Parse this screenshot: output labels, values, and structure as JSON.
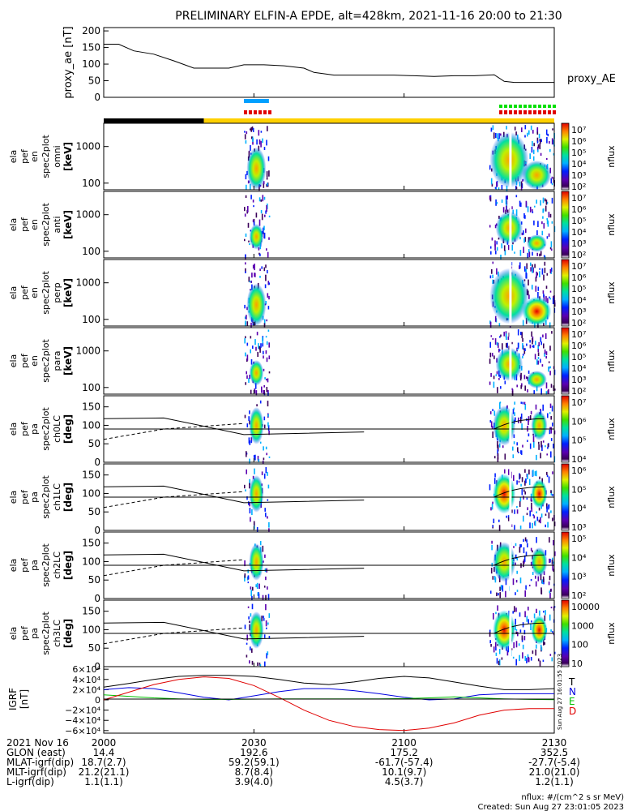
{
  "title": "PRELIMINARY ELFIN-A EPDE, alt=428km, 2021-11-16 20:00 to 21:30",
  "colors": {
    "red": "#e00000",
    "blue": "#0000e0",
    "green": "#00c000",
    "black": "#000000",
    "yellow": "#ffd000",
    "lightblue": "#00a0ff",
    "lime": "#00e000"
  },
  "chart_data": {
    "type": "line",
    "time_range_min": [
      0,
      90
    ],
    "x_ticks": [
      "2000",
      "2030",
      "2100",
      "2130"
    ],
    "ae": {
      "ylabel": "proxy_ae [nT]",
      "legend": "proxy_AE",
      "yticks": [
        "200",
        "150",
        "100",
        "50",
        "0"
      ],
      "ylim": [
        0,
        210
      ],
      "x": [
        0,
        3,
        6,
        10,
        14,
        18,
        22,
        25,
        28,
        32,
        36,
        40,
        42,
        46,
        50,
        54,
        58,
        62,
        66,
        70,
        74,
        78,
        80,
        82,
        86,
        90
      ],
      "y": [
        160,
        160,
        140,
        130,
        110,
        88,
        88,
        88,
        98,
        98,
        95,
        88,
        75,
        67,
        67,
        67,
        67,
        65,
        63,
        65,
        65,
        68,
        48,
        45,
        45,
        45
      ]
    },
    "bars": {
      "blue": [
        [
          28,
          33
        ]
      ],
      "red": [
        [
          28,
          33
        ],
        [
          79,
          90
        ]
      ],
      "green": [
        [
          79,
          90
        ]
      ],
      "black": [
        [
          0,
          20
        ]
      ],
      "yellow": [
        [
          20,
          90
        ]
      ]
    },
    "energy_panels": [
      {
        "ylabel": [
          "ela",
          "pef",
          "en",
          "spec2plot",
          "omni",
          "[keV]"
        ],
        "yticks": [
          "1000",
          "100"
        ],
        "cbar_labels": [
          "10⁷",
          "10⁶",
          "10⁵",
          "10⁴",
          "10³",
          "10²"
        ],
        "cbar_title": "nflux"
      },
      {
        "ylabel": [
          "ela",
          "pef",
          "en",
          "spec2plot",
          "anti",
          "[keV]"
        ],
        "yticks": [
          "1000",
          "100"
        ],
        "cbar_labels": [
          "10⁷",
          "10⁶",
          "10⁵",
          "10⁴",
          "10³",
          "10²"
        ],
        "cbar_title": "nflux"
      },
      {
        "ylabel": [
          "ela",
          "pef",
          "en",
          "spec2plot",
          "perp",
          "[keV]"
        ],
        "yticks": [
          "1000",
          "100"
        ],
        "cbar_labels": [
          "10⁷",
          "10⁶",
          "10⁵",
          "10⁴",
          "10³",
          "10²"
        ],
        "cbar_title": "nflux"
      },
      {
        "ylabel": [
          "ela",
          "pef",
          "en",
          "spec2plot",
          "para",
          "[keV]"
        ],
        "yticks": [
          "1000",
          "100"
        ],
        "cbar_labels": [
          "10⁷",
          "10⁶",
          "10⁵",
          "10⁴",
          "10³",
          "10²"
        ],
        "cbar_title": "nflux"
      }
    ],
    "pa_panels": [
      {
        "ylabel": [
          "ela",
          "pef",
          "pa",
          "spec2plot",
          "ch0LC",
          "[deg]"
        ],
        "yticks": [
          "150",
          "100",
          "50",
          "0"
        ],
        "cbar_labels": [
          "10⁷",
          "10⁶",
          "10⁵",
          "10⁴"
        ],
        "cbar_title": "nflux"
      },
      {
        "ylabel": [
          "ela",
          "pef",
          "pa",
          "spec2plot",
          "ch1LC",
          "[deg]"
        ],
        "yticks": [
          "150",
          "100",
          "50",
          "0"
        ],
        "cbar_labels": [
          "10⁶",
          "10⁵",
          "10⁴",
          "10³"
        ],
        "cbar_title": "nflux"
      },
      {
        "ylabel": [
          "ela",
          "pef",
          "pa",
          "spec2plot",
          "ch2LC",
          "[deg]"
        ],
        "yticks": [
          "150",
          "100",
          "50",
          "0"
        ],
        "cbar_labels": [
          "10⁵",
          "10⁴",
          "10³",
          "10²"
        ],
        "cbar_title": "nflux"
      },
      {
        "ylabel": [
          "ela",
          "pef",
          "pa",
          "spec2plot",
          "ch3LC",
          "[deg]"
        ],
        "yticks": [
          "150",
          "100",
          "50",
          "0"
        ],
        "cbar_labels": [
          "10000",
          "1000",
          "100",
          "10"
        ],
        "cbar_title": "nflux"
      }
    ],
    "igrf": {
      "ylabel": [
        "IGRF",
        "[nT]"
      ],
      "yticks": [
        "6×10⁴",
        "4×10⁴",
        "2×10⁴",
        "0",
        "−2×10⁴",
        "−4×10⁴",
        "−6×10⁴"
      ],
      "ylim": [
        -65000,
        65000
      ],
      "legend": [
        "T",
        "N",
        "E",
        "D"
      ],
      "x": [
        0,
        5,
        10,
        15,
        20,
        25,
        30,
        35,
        40,
        45,
        50,
        55,
        60,
        65,
        70,
        75,
        80,
        85,
        90
      ],
      "T": [
        25000,
        32000,
        40000,
        46000,
        48000,
        48000,
        46000,
        40000,
        33000,
        30000,
        35000,
        42000,
        46000,
        43000,
        35000,
        27000,
        20000,
        20000,
        22000
      ],
      "N": [
        20000,
        24000,
        22000,
        14000,
        5000,
        0,
        8000,
        16000,
        22000,
        22000,
        18000,
        12000,
        5000,
        0,
        2000,
        10000,
        12000,
        12000,
        12000
      ],
      "E": [
        10000,
        7000,
        4000,
        2000,
        1000,
        1000,
        1500,
        2000,
        2000,
        2000,
        2000,
        2000,
        2500,
        4000,
        6000,
        4000,
        2000,
        1000,
        500
      ],
      "D": [
        0,
        15000,
        30000,
        40000,
        45000,
        42000,
        28000,
        5000,
        -20000,
        -40000,
        -52000,
        -58000,
        -60000,
        -55000,
        -45000,
        -30000,
        -20000,
        -17000,
        -17000
      ]
    }
  },
  "ephemeris": [
    {
      "label": "2021 Nov 16",
      "values": [
        "2000",
        "2030",
        "2100",
        "2130"
      ]
    },
    {
      "label": "GLON (east)",
      "values": [
        "14.4",
        "192.6",
        "175.2",
        "352.5"
      ]
    },
    {
      "label": "MLAT-igrf(dip)",
      "values": [
        "18.7(2.7)",
        "59.2(59.1)",
        "-61.7(-57.4)",
        "-27.7(-5.4)"
      ]
    },
    {
      "label": "MLT-igrf(dip)",
      "values": [
        "21.2(21.1)",
        "8.7(8.4)",
        "10.1(9.7)",
        "21.0(21.0)"
      ]
    },
    {
      "label": "L-igrf(dip)",
      "values": [
        "1.1(1.1)",
        "3.9(4.0)",
        "4.5(3.7)",
        "1.2(1.1)"
      ]
    }
  ],
  "footer": {
    "units": "nflux: #/(cm^2 s sr MeV)",
    "created": "Created: Sun Aug 27 23:01:05 2023"
  },
  "side_stamp": "Sun Aug 27 16:01:55 2023"
}
